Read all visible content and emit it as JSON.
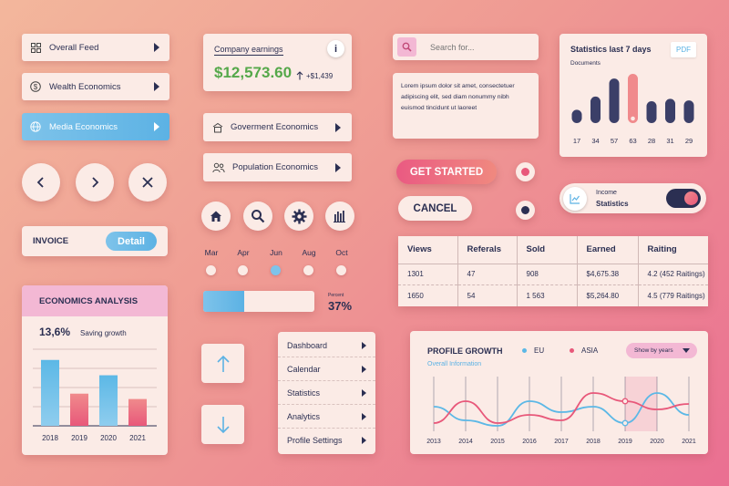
{
  "sidebar": {
    "items": [
      {
        "label": "Overall Feed",
        "icon": "grid-icon"
      },
      {
        "label": "Wealth Economics",
        "icon": "dollar-icon"
      },
      {
        "label": "Media Economics",
        "icon": "globe-icon"
      }
    ]
  },
  "nav_circles": [
    "chevron-left-icon",
    "chevron-right-icon",
    "close-icon"
  ],
  "invoice": {
    "label": "INVOICE",
    "button": "Detail"
  },
  "econ_analysis": {
    "title": "ECONOMICS ANALYSIS",
    "percent": "13,6%",
    "caption": "Saving growth"
  },
  "earnings": {
    "label": "Company earnings",
    "info": "i",
    "amount": "$12,573.60",
    "delta": "+$1,439"
  },
  "economics_buttons": [
    {
      "label": "Goverment Economics",
      "icon": "bank-icon"
    },
    {
      "label": "Population Economics",
      "icon": "people-icon"
    }
  ],
  "icon_row": [
    "home-icon",
    "search-icon",
    "gear-icon",
    "bar-chart-icon"
  ],
  "months": {
    "labels": [
      "Mar",
      "Apr",
      "Jun",
      "Aug",
      "Oct"
    ],
    "selected_index": 2
  },
  "progress": {
    "label": "Percent",
    "value": "37%",
    "fraction": 0.37
  },
  "arrows": [
    "arrow-up-icon",
    "arrow-down-icon"
  ],
  "menu": {
    "items": [
      "Dashboard",
      "Calendar",
      "Statistics",
      "Analytics",
      "Profile Settings"
    ]
  },
  "search": {
    "placeholder": "Search for..."
  },
  "lorem": "Lorem ipsum dolor sit amet, consectetuer adipiscing elit, sed diam nonummy nibh euismod tincidunt ut laoreet",
  "buttons": {
    "get_started": "GET STARTED",
    "cancel": "CANCEL"
  },
  "income_toggle": {
    "line1": "Income",
    "line2": "Statistics",
    "on": true
  },
  "stats7": {
    "title": "Statistics last 7 days",
    "subtitle": "Documents",
    "badge": "PDF"
  },
  "table": {
    "headers": [
      "Views",
      "Referals",
      "Sold",
      "Earned",
      "Raiting"
    ],
    "rows": [
      [
        "1301",
        "47",
        "908",
        "$4,675.38",
        "4.2 (452 Raitings)"
      ],
      [
        "1650",
        "54",
        "1 563",
        "$5,264.80",
        "4.5 (779 Raitings)"
      ]
    ]
  },
  "profile": {
    "title": "PROFILE GROWTH",
    "subtitle": "Overall Information",
    "dropdown": "Show by years"
  },
  "chart_data": [
    {
      "type": "bar",
      "title": "",
      "categories": [
        "17",
        "34",
        "57",
        "63",
        "28",
        "31",
        "29"
      ],
      "values": [
        17,
        34,
        57,
        63,
        28,
        31,
        29
      ],
      "highlight_index": 3,
      "colors": {
        "bar": "#3b3f68",
        "highlight": "#f08a8c"
      }
    },
    {
      "type": "bar",
      "title": "",
      "categories": [
        "2018",
        "2019",
        "2020",
        "2021"
      ],
      "series": [
        {
          "values": [
            86,
            42,
            66,
            35
          ]
        }
      ],
      "ylim": [
        0,
        100
      ],
      "colors": [
        "#5cb8e6",
        "#e8587a",
        "#5cb8e6",
        "#e8587a"
      ],
      "grid": true
    },
    {
      "type": "line",
      "title": "PROFILE GROWTH",
      "x": [
        "2013",
        "2014",
        "2015",
        "2016",
        "2017",
        "2018",
        "2019",
        "2020",
        "2021"
      ],
      "series": [
        {
          "name": "EU",
          "color": "#5cb8e6",
          "values": [
            45,
            20,
            10,
            55,
            35,
            45,
            15,
            70,
            30
          ]
        },
        {
          "name": "ASIA",
          "color": "#e8587a",
          "values": [
            15,
            55,
            15,
            30,
            20,
            70,
            55,
            40,
            50
          ]
        }
      ],
      "ylim": [
        0,
        100
      ],
      "grid": true,
      "highlight_x": "2019"
    }
  ]
}
